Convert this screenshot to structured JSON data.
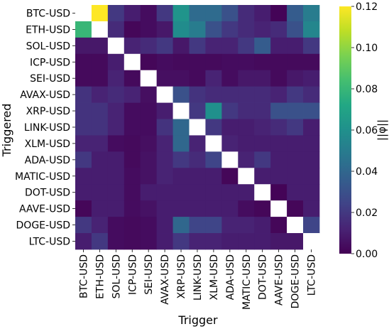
{
  "chart_data": {
    "type": "heatmap",
    "title": "",
    "xlabel": "Trigger",
    "ylabel": "Triggered",
    "colorbar_label": "||φ||",
    "colormap": "viridis",
    "vmin": 0.0,
    "vmax": 0.12,
    "colorbar_ticks": [
      "0.00",
      "0.02",
      "0.04",
      "0.06",
      "0.08",
      "0.10",
      "0.12"
    ],
    "x_categories": [
      "BTC-USD",
      "ETH-USD",
      "SOL-USD",
      "ICP-USD",
      "SEI-USD",
      "AVAX-USD",
      "XRP-USD",
      "LINK-USD",
      "XLM-USD",
      "ADA-USD",
      "MATIC-USD",
      "DOT-USD",
      "AAVE-USD",
      "DOGE-USD",
      "LTC-USD"
    ],
    "y_categories": [
      "BTC-USD",
      "ETH-USD",
      "SOL-USD",
      "ICP-USD",
      "SEI-USD",
      "AVAX-USD",
      "XRP-USD",
      "LINK-USD",
      "XLM-USD",
      "ADA-USD",
      "MATIC-USD",
      "DOT-USD",
      "AAVE-USD",
      "DOGE-USD",
      "LTC-USD"
    ],
    "diagonal_color": "#ffffff",
    "values": [
      [
        null,
        0.12,
        0.02,
        0.01,
        0.004,
        0.02,
        0.062,
        0.042,
        0.042,
        0.03,
        0.015,
        0.01,
        0.001,
        0.035,
        0.05
      ],
      [
        0.08,
        null,
        0.015,
        0.002,
        0.004,
        0.008,
        0.058,
        0.05,
        0.03,
        0.02,
        0.015,
        0.012,
        0.015,
        0.03,
        0.055
      ],
      [
        0.008,
        0.008,
        null,
        0.012,
        0.015,
        0.02,
        0.008,
        0.02,
        0.012,
        0.012,
        0.02,
        0.035,
        0.01,
        0.01,
        0.02
      ],
      [
        0.003,
        0.003,
        0.01,
        null,
        0.002,
        0.004,
        0.003,
        0.003,
        0.003,
        0.004,
        0.004,
        0.003,
        0.003,
        0.003,
        0.003
      ],
      [
        0.003,
        0.003,
        0.012,
        0.003,
        null,
        0.005,
        0.005,
        0.003,
        0.012,
        0.004,
        0.008,
        0.008,
        0.003,
        0.008,
        0.01
      ],
      [
        0.018,
        0.012,
        0.015,
        0.012,
        0.005,
        null,
        0.03,
        0.018,
        0.015,
        0.015,
        0.015,
        0.015,
        0.012,
        0.02,
        0.015
      ],
      [
        0.018,
        0.018,
        0.012,
        0.004,
        0.004,
        0.01,
        null,
        0.02,
        0.06,
        0.02,
        0.015,
        0.015,
        0.03,
        0.03,
        0.03
      ],
      [
        0.018,
        0.018,
        0.012,
        0.004,
        0.004,
        0.018,
        0.04,
        null,
        0.02,
        0.01,
        0.01,
        0.012,
        0.015,
        0.02,
        0.01
      ],
      [
        0.012,
        0.012,
        0.004,
        0.003,
        0.005,
        0.012,
        0.04,
        0.012,
        null,
        0.012,
        0.01,
        0.01,
        0.01,
        0.01,
        0.01
      ],
      [
        0.02,
        0.01,
        0.01,
        0.003,
        0.006,
        0.012,
        0.02,
        0.015,
        0.025,
        null,
        0.012,
        0.02,
        0.01,
        0.01,
        0.01
      ],
      [
        0.01,
        0.01,
        0.01,
        0.004,
        0.006,
        0.012,
        0.01,
        0.01,
        0.01,
        0.002,
        null,
        0.01,
        0.01,
        0.01,
        0.01
      ],
      [
        0.01,
        0.01,
        0.01,
        0.004,
        0.01,
        0.01,
        0.01,
        0.01,
        0.01,
        0.01,
        0.01,
        null,
        0.001,
        0.01,
        0.01
      ],
      [
        0.002,
        0.01,
        0.01,
        0.004,
        0.006,
        0.01,
        0.01,
        0.01,
        0.01,
        0.01,
        0.004,
        0.002,
        null,
        0.002,
        0.01
      ],
      [
        0.02,
        0.012,
        0.004,
        0.003,
        0.004,
        0.01,
        0.04,
        0.025,
        0.025,
        0.012,
        0.012,
        0.01,
        0.002,
        null,
        0.025
      ],
      [
        0.01,
        0.02,
        0.004,
        0.003,
        0.004,
        0.01,
        0.02,
        0.012,
        0.012,
        0.01,
        0.01,
        0.01,
        0.008,
        0.008,
        null
      ]
    ]
  }
}
